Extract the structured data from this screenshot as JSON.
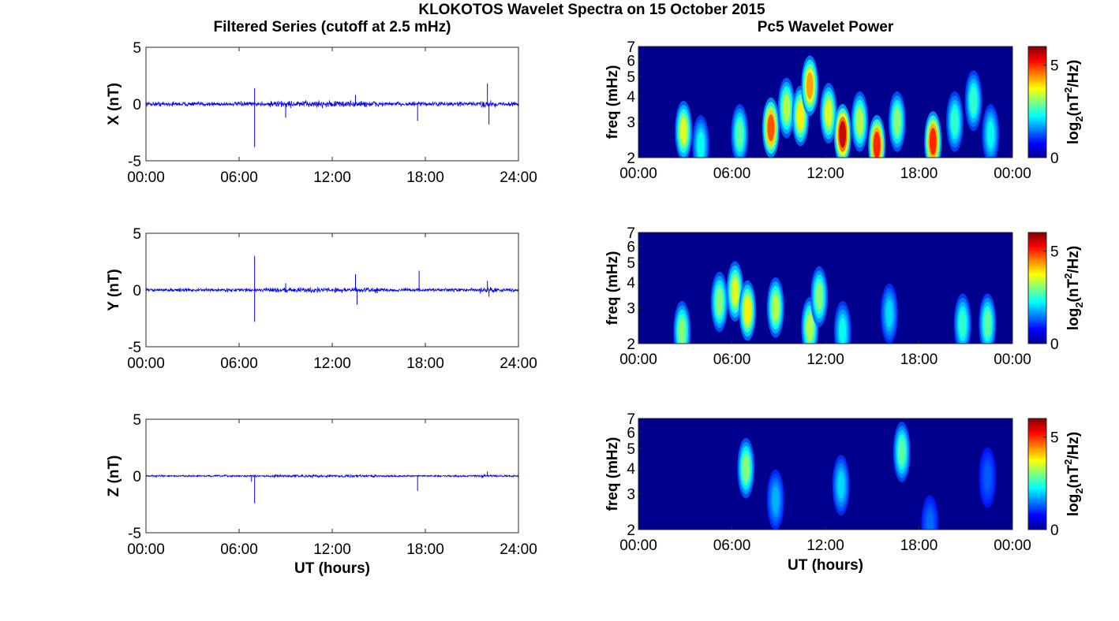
{
  "suptitle": "KLOKOTOS Wavelet Spectra on 15 October 2015",
  "colors": {
    "trace": "#0000ff",
    "background": "#00008f"
  },
  "chart_data": [
    {
      "type": "line",
      "title": "Filtered Series (cutoff at 2.5 mHz)",
      "ylabel": "X (nT)",
      "xlabel": "",
      "xlim": [
        0,
        24
      ],
      "ylim": [
        -5,
        5
      ],
      "xticks": [
        "00:00",
        "06:00",
        "12:00",
        "18:00",
        "24:00"
      ],
      "yticks": [
        "-5",
        "0",
        "5"
      ],
      "noise_amplitude": 0.28,
      "spikes": [
        {
          "x": 7.0,
          "y": -3.8
        },
        {
          "x": 7.0,
          "y": 1.4
        },
        {
          "x": 9.0,
          "y": -1.2
        },
        {
          "x": 13.5,
          "y": 0.8
        },
        {
          "x": 17.5,
          "y": -1.5
        },
        {
          "x": 22.0,
          "y": 1.8
        },
        {
          "x": 22.1,
          "y": -1.8
        }
      ]
    },
    {
      "type": "line",
      "title": "",
      "ylabel": "Y (nT)",
      "xlabel": "",
      "xlim": [
        0,
        24
      ],
      "ylim": [
        -5,
        5
      ],
      "xticks": [
        "00:00",
        "06:00",
        "12:00",
        "18:00",
        "24:00"
      ],
      "yticks": [
        "-5",
        "0",
        "5"
      ],
      "noise_amplitude": 0.22,
      "spikes": [
        {
          "x": 7.0,
          "y": 3.0
        },
        {
          "x": 7.0,
          "y": -2.8
        },
        {
          "x": 9.0,
          "y": 0.6
        },
        {
          "x": 13.5,
          "y": 1.4
        },
        {
          "x": 13.6,
          "y": -1.3
        },
        {
          "x": 17.6,
          "y": 1.7
        },
        {
          "x": 22.0,
          "y": 0.8
        },
        {
          "x": 22.1,
          "y": -0.6
        }
      ]
    },
    {
      "type": "line",
      "title": "",
      "ylabel": "Z (nT)",
      "xlabel": "UT (hours)",
      "xlim": [
        0,
        24
      ],
      "ylim": [
        -5,
        5
      ],
      "xticks": [
        "00:00",
        "06:00",
        "12:00",
        "18:00",
        "24:00"
      ],
      "yticks": [
        "-5",
        "0",
        "5"
      ],
      "noise_amplitude": 0.12,
      "spikes": [
        {
          "x": 7.0,
          "y": -2.4
        },
        {
          "x": 6.8,
          "y": -0.5
        },
        {
          "x": 17.5,
          "y": -1.3
        },
        {
          "x": 22.0,
          "y": 0.4
        }
      ]
    },
    {
      "type": "heatmap",
      "title": "Pc5 Wavelet Power",
      "ylabel": "freq (mHz)",
      "xlabel": "",
      "xlim": [
        0,
        24
      ],
      "ylim": [
        2,
        7
      ],
      "yscale": "log",
      "xticks": [
        "00:00",
        "06:00",
        "12:00",
        "18:00",
        "00:00"
      ],
      "yticks": [
        "2",
        "3",
        "4",
        "5",
        "6",
        "7"
      ],
      "colorbar": {
        "label": "log2(nT2/Hz)",
        "label_main": "log",
        "label_sub": "2",
        "label_mid": "(nT",
        "label_sup": "2",
        "label_end": "/Hz)",
        "range": [
          0,
          6
        ],
        "ticks": [
          "0",
          "5"
        ]
      },
      "blobs": [
        {
          "t": 2.9,
          "f": 2.7,
          "p": 0.55
        },
        {
          "t": 4.0,
          "f": 2.3,
          "p": 0.3
        },
        {
          "t": 6.5,
          "f": 2.6,
          "p": 0.4
        },
        {
          "t": 8.5,
          "f": 2.8,
          "p": 0.8
        },
        {
          "t": 9.5,
          "f": 3.5,
          "p": 0.5
        },
        {
          "t": 10.4,
          "f": 3.2,
          "p": 0.6
        },
        {
          "t": 11.0,
          "f": 4.5,
          "p": 0.7
        },
        {
          "t": 12.2,
          "f": 3.3,
          "p": 0.55
        },
        {
          "t": 13.1,
          "f": 2.6,
          "p": 0.95
        },
        {
          "t": 14.2,
          "f": 3.0,
          "p": 0.5
        },
        {
          "t": 15.3,
          "f": 2.3,
          "p": 0.85
        },
        {
          "t": 16.6,
          "f": 3.0,
          "p": 0.45
        },
        {
          "t": 18.9,
          "f": 2.4,
          "p": 0.85
        },
        {
          "t": 20.3,
          "f": 3.0,
          "p": 0.35
        },
        {
          "t": 21.5,
          "f": 3.8,
          "p": 0.35
        },
        {
          "t": 22.6,
          "f": 2.6,
          "p": 0.3
        }
      ]
    },
    {
      "type": "heatmap",
      "title": "",
      "ylabel": "freq (mHz)",
      "xlabel": "",
      "xlim": [
        0,
        24
      ],
      "ylim": [
        2,
        7
      ],
      "yscale": "log",
      "xticks": [
        "00:00",
        "06:00",
        "12:00",
        "18:00",
        "00:00"
      ],
      "yticks": [
        "2",
        "3",
        "4",
        "5",
        "6",
        "7"
      ],
      "colorbar": {
        "label": "log2(nT2/Hz)",
        "label_main": "log",
        "label_sub": "2",
        "label_mid": "(nT",
        "label_sup": "2",
        "label_end": "/Hz)",
        "range": [
          0,
          6
        ],
        "ticks": [
          "0",
          "5"
        ]
      },
      "blobs": [
        {
          "t": 2.8,
          "f": 2.3,
          "p": 0.45
        },
        {
          "t": 5.2,
          "f": 3.2,
          "p": 0.45
        },
        {
          "t": 6.2,
          "f": 3.6,
          "p": 0.55
        },
        {
          "t": 7.0,
          "f": 2.9,
          "p": 0.6
        },
        {
          "t": 8.8,
          "f": 3.0,
          "p": 0.5
        },
        {
          "t": 11.0,
          "f": 2.4,
          "p": 0.5
        },
        {
          "t": 11.6,
          "f": 3.4,
          "p": 0.45
        },
        {
          "t": 13.1,
          "f": 2.3,
          "p": 0.3
        },
        {
          "t": 16.1,
          "f": 2.8,
          "p": 0.25
        },
        {
          "t": 20.8,
          "f": 2.5,
          "p": 0.35
        },
        {
          "t": 22.4,
          "f": 2.5,
          "p": 0.4
        }
      ]
    },
    {
      "type": "heatmap",
      "title": "",
      "ylabel": "freq (mHz)",
      "xlabel": "UT (hours)",
      "xlim": [
        0,
        24
      ],
      "ylim": [
        2,
        7
      ],
      "yscale": "log",
      "xticks": [
        "00:00",
        "06:00",
        "12:00",
        "18:00",
        "00:00"
      ],
      "yticks": [
        "2",
        "3",
        "4",
        "5",
        "6",
        "7"
      ],
      "colorbar": {
        "label": "log2(nT2/Hz)",
        "label_main": "log",
        "label_sub": "2",
        "label_mid": "(nT",
        "label_sup": "2",
        "label_end": "/Hz)",
        "range": [
          0,
          6
        ],
        "ticks": [
          "0",
          "5"
        ]
      },
      "blobs": [
        {
          "t": 6.9,
          "f": 4.0,
          "p": 0.45
        },
        {
          "t": 8.8,
          "f": 2.8,
          "p": 0.2
        },
        {
          "t": 13.0,
          "f": 3.3,
          "p": 0.25
        },
        {
          "t": 16.9,
          "f": 4.8,
          "p": 0.4
        },
        {
          "t": 18.7,
          "f": 2.1,
          "p": 0.12
        },
        {
          "t": 22.4,
          "f": 3.6,
          "p": 0.1
        }
      ]
    }
  ]
}
